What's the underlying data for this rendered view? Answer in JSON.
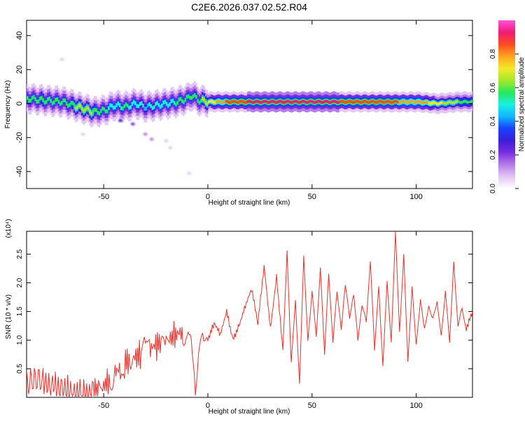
{
  "title": "C2E6.2026.037.02.52.R04",
  "colors": {
    "snr_line": "#e8312c",
    "spectrogram_palette": [
      "#ffffff",
      "#e3c6f5",
      "#b57be8",
      "#7a2de0",
      "#3a1fd6",
      "#1840ff",
      "#11b7ff",
      "#19f0e0",
      "#27e85a",
      "#a6e82b",
      "#f5e829",
      "#ffa41f",
      "#ff4b22",
      "#f01a74",
      "#ff52d8"
    ]
  },
  "chart_data": [
    {
      "type": "heatmap",
      "xlabel": "Height of straight line (km)",
      "ylabel": "Frequency (Hz)",
      "xlim": [
        -87,
        127
      ],
      "ylim": [
        -50,
        49
      ],
      "xticks": [
        -50,
        0,
        50,
        100
      ],
      "yticks": [
        -40,
        -20,
        0,
        20,
        40
      ],
      "colorbar": {
        "label": "Normalized spectral amplitude",
        "range": [
          0,
          1
        ],
        "ticks": [
          0.0,
          0.2,
          0.4,
          0.6,
          0.8
        ]
      },
      "ridge": {
        "x": [
          -87,
          -80,
          -70,
          -65,
          -60,
          -55,
          -50,
          -45,
          -40,
          -35,
          -30,
          -25,
          -20,
          -15,
          -10,
          -8,
          -5,
          0,
          10,
          20,
          40,
          60,
          80,
          100,
          110,
          120,
          127
        ],
        "freq": [
          3,
          2,
          1,
          -1,
          -3,
          -5,
          -4,
          -1,
          -2,
          0,
          -2,
          -1,
          0,
          1,
          3,
          5,
          2,
          1,
          1,
          1,
          1,
          1,
          1,
          1,
          0,
          1,
          1
        ],
        "amplitude": [
          0.55,
          0.6,
          0.55,
          0.6,
          0.65,
          0.6,
          0.55,
          0.5,
          0.55,
          0.5,
          0.45,
          0.5,
          0.5,
          0.55,
          0.6,
          0.55,
          0.55,
          0.7,
          0.85,
          0.9,
          0.9,
          0.9,
          0.85,
          0.8,
          0.7,
          0.6,
          0.6
        ]
      },
      "scatter_blobs": [
        {
          "x": -42,
          "freq": -10,
          "amplitude": 0.25
        },
        {
          "x": -36,
          "freq": -12,
          "amplitude": 0.2
        },
        {
          "x": -30,
          "freq": -18,
          "amplitude": 0.15
        },
        {
          "x": -27,
          "freq": -21,
          "amplitude": 0.12
        },
        {
          "x": -20,
          "freq": -22,
          "amplitude": 0.1
        },
        {
          "x": -18,
          "freq": -26,
          "amplitude": 0.08
        },
        {
          "x": -9,
          "freq": -41,
          "amplitude": 0.1
        },
        {
          "x": -60,
          "freq": -18,
          "amplitude": 0.08
        },
        {
          "x": -70,
          "freq": 26,
          "amplitude": 0.05
        }
      ]
    },
    {
      "type": "line",
      "xlabel": "Height of straight line (km)",
      "ylabel": "SNR (10 * v/v)",
      "y_multiplier_label": "(x10⁴)",
      "xlim": [
        -87,
        127
      ],
      "ylim": [
        0,
        2.9
      ],
      "xticks": [
        -50,
        0,
        50,
        100
      ],
      "yticks": [
        0.5,
        1.0,
        1.5,
        2.0,
        2.5
      ],
      "ytick_labels": [
        "0.5",
        "1.0",
        "1.5",
        "2.0",
        "2.5"
      ],
      "series": [
        {
          "x": [
            -87,
            -80,
            -75,
            -70,
            -65,
            -60,
            -55,
            -52,
            -50,
            -47,
            -45,
            -42,
            -40,
            -37,
            -35,
            -32,
            -30,
            -28,
            -25,
            -22,
            -20,
            -18,
            -15,
            -12,
            -10,
            -8,
            -6,
            -4,
            -2,
            0,
            3,
            6,
            9,
            12,
            15,
            18,
            21,
            24,
            27,
            30,
            33,
            36,
            38,
            40,
            42,
            44,
            46,
            48,
            50,
            52,
            54,
            56,
            58,
            60,
            62,
            64,
            66,
            68,
            70,
            72,
            74,
            76,
            78,
            80,
            82,
            84,
            86,
            88,
            90,
            92,
            94,
            96,
            98,
            100,
            102,
            104,
            106,
            108,
            110,
            112,
            114,
            116,
            118,
            120,
            122,
            124,
            127
          ],
          "y": [
            0.25,
            0.3,
            0.2,
            0.15,
            0.08,
            0.05,
            0.06,
            0.12,
            0.22,
            0.3,
            0.45,
            0.5,
            0.6,
            0.65,
            0.7,
            0.75,
            0.8,
            0.85,
            0.9,
            0.95,
            0.95,
            1.05,
            1.1,
            1.15,
            1.25,
            1.3,
            0.2,
            1.1,
            1.2,
            1.0,
            1.3,
            1.1,
            1.5,
            1.0,
            1.25,
            1.6,
            1.9,
            1.3,
            2.3,
            1.2,
            2.1,
            0.8,
            2.55,
            0.6,
            1.7,
            0.25,
            2.5,
            1.0,
            1.9,
            1.1,
            2.3,
            0.8,
            2.2,
            1.0,
            1.9,
            1.2,
            2.0,
            1.4,
            1.8,
            1.0,
            1.6,
            1.3,
            2.35,
            0.8,
            1.9,
            0.5,
            2.0,
            0.9,
            2.85,
            1.1,
            2.45,
            0.6,
            1.9,
            0.9,
            1.7,
            1.2,
            1.6,
            1.4,
            1.7,
            1.1,
            1.9,
            1.0,
            2.4,
            1.3,
            1.6,
            1.2,
            1.5
          ]
        }
      ]
    }
  ]
}
